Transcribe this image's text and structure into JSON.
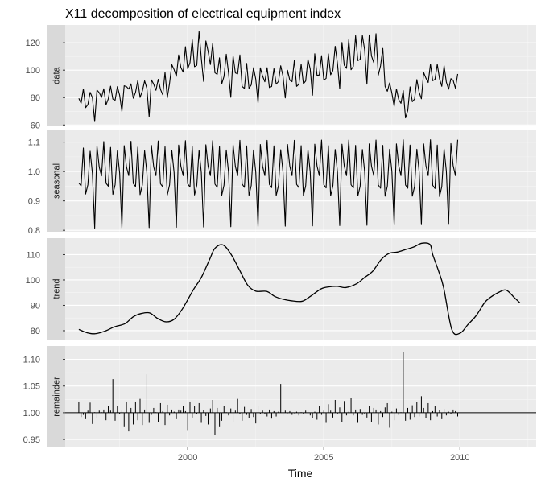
{
  "chart_data": {
    "type": "line",
    "title": "X11 decomposition of electrical equipment index",
    "xlabel": "Time",
    "x_start": 1996.0,
    "x_step_months": 1,
    "xlim": [
      1995.5,
      2012.8
    ],
    "xticks": [
      2000,
      2005,
      2010
    ],
    "xtick_labels": [
      "2000",
      "2005",
      "2010"
    ],
    "grid": true,
    "panels": [
      {
        "name": "data",
        "kind": "line",
        "ylim": [
          59,
          133
        ],
        "yticks": [
          60,
          80,
          100,
          120
        ],
        "ytick_labels": [
          "60",
          "80",
          "100",
          "120"
        ],
        "values": [
          79.4,
          75.8,
          86.3,
          72.6,
          74.9,
          83.8,
          79.9,
          62.5,
          85.4,
          83.6,
          80.1,
          86.4,
          74.7,
          79.1,
          88.3,
          78.9,
          78.1,
          88.0,
          81.7,
          69.8,
          88.6,
          88.0,
          86.2,
          90.0,
          79.5,
          83.8,
          92.4,
          80.1,
          84.7,
          92.2,
          86.8,
          65.9,
          92.9,
          89.8,
          85.3,
          93.3,
          86.0,
          82.0,
          98.4,
          79.9,
          90.4,
          104.0,
          100.4,
          95.5,
          111.1,
          101.8,
          98.6,
          117.1,
          101.0,
          105.4,
          122.1,
          102.5,
          103.5,
          128.2,
          108.5,
          91.8,
          121.3,
          113.6,
          104.1,
          119.4,
          98.1,
          96.9,
          109.0,
          89.9,
          95.4,
          111.6,
          97.9,
          80.2,
          110.4,
          98.0,
          97.3,
          111.1,
          88.1,
          86.7,
          104.9,
          86.8,
          89.2,
          101.8,
          93.4,
          76.1,
          101.7,
          95.7,
          91.5,
          101.8,
          87.3,
          88.1,
          101.1,
          89.8,
          91.7,
          103.2,
          95.6,
          79.7,
          99.9,
          92.7,
          91.6,
          107.1,
          88.2,
          89.7,
          104.4,
          90.0,
          92.1,
          107.9,
          100.8,
          81.7,
          112.0,
          96.2,
          96.5,
          110.6,
          92.7,
          94.0,
          111.9,
          96.6,
          99.7,
          117.4,
          105.0,
          86.4,
          120.2,
          103.6,
          101.3,
          122.2,
          100.3,
          102.7,
          125.2,
          107.0,
          107.8,
          125.3,
          114.7,
          89.8,
          125.7,
          110.4,
          105.5,
          126.6,
          96.3,
          103.2,
          115.9,
          88.1,
          84.6,
          90.7,
          83.2,
          73.6,
          86.3,
          78.6,
          75.8,
          85.1,
          65.1,
          70.6,
          87.8,
          77.0,
          78.9,
          93.1,
          83.9,
          79.1,
          98.3,
          94.2,
          91.0,
          104.4,
          92.3,
          93.3,
          104.3,
          93.7,
          88.2,
          103.3,
          91.3,
          86.1,
          93.8,
          92.6,
          86.8,
          97.2
        ]
      },
      {
        "name": "seasonal",
        "kind": "line",
        "ylim": [
          0.795,
          1.14
        ],
        "yticks": [
          0.8,
          0.9,
          1.0,
          1.1
        ],
        "ytick_labels": [
          "0.8",
          "0.9",
          "1.0",
          "1.1"
        ],
        "values": [
          0.961,
          0.951,
          1.08,
          0.923,
          0.955,
          1.069,
          0.993,
          0.807,
          1.087,
          1.015,
          0.985,
          1.102,
          0.96,
          0.95,
          1.082,
          0.922,
          0.955,
          1.07,
          0.994,
          0.808,
          1.088,
          1.016,
          0.986,
          1.103,
          0.959,
          0.949,
          1.083,
          0.921,
          0.954,
          1.071,
          0.995,
          0.809,
          1.089,
          1.016,
          0.986,
          1.104,
          0.958,
          0.948,
          1.084,
          0.92,
          0.954,
          1.072,
          0.996,
          0.81,
          1.09,
          1.017,
          0.986,
          1.105,
          0.958,
          0.947,
          1.085,
          0.92,
          0.953,
          1.072,
          0.996,
          0.811,
          1.091,
          1.017,
          0.986,
          1.105,
          0.957,
          0.946,
          1.086,
          0.919,
          0.953,
          1.073,
          0.997,
          0.812,
          1.091,
          1.018,
          0.986,
          1.106,
          0.957,
          0.946,
          1.087,
          0.919,
          0.952,
          1.073,
          0.997,
          0.813,
          1.092,
          1.018,
          0.986,
          1.106,
          0.956,
          0.945,
          1.087,
          0.918,
          0.952,
          1.074,
          0.998,
          0.814,
          1.092,
          1.018,
          0.986,
          1.106,
          0.956,
          0.945,
          1.088,
          0.918,
          0.951,
          1.074,
          0.998,
          0.815,
          1.093,
          1.019,
          0.986,
          1.107,
          0.955,
          0.944,
          1.088,
          0.917,
          0.951,
          1.075,
          0.999,
          0.816,
          1.093,
          1.019,
          0.986,
          1.107,
          0.955,
          0.944,
          1.089,
          0.917,
          0.95,
          1.075,
          0.999,
          0.817,
          1.094,
          1.019,
          0.986,
          1.107,
          0.954,
          0.943,
          1.089,
          0.916,
          0.95,
          1.076,
          1.0,
          0.818,
          1.094,
          1.02,
          0.986,
          1.108,
          0.954,
          0.943,
          1.09,
          0.916,
          0.949,
          1.076,
          1.0,
          0.819,
          1.094,
          1.02,
          0.986,
          1.108,
          0.953,
          0.942,
          1.09,
          0.915,
          0.949,
          1.077,
          1.001,
          0.82,
          1.095,
          1.02,
          0.986,
          1.108
        ]
      },
      {
        "name": "trend",
        "kind": "line",
        "ylim": [
          76.5,
          116.5
        ],
        "yticks": [
          80,
          90,
          100,
          110
        ],
        "ytick_labels": [
          "80",
          "90",
          "100",
          "110"
        ],
        "knots_x": [
          1996.0,
          1996.3,
          1996.6,
          1997.0,
          1997.3,
          1997.7,
          1998.0,
          1998.3,
          1998.6,
          1998.9,
          1999.2,
          1999.5,
          1999.8,
          2000.2,
          2000.5,
          2000.8,
          2001.0,
          2001.3,
          2001.6,
          2001.9,
          2002.2,
          2002.5,
          2002.9,
          2003.2,
          2003.5,
          2003.8,
          2004.2,
          2004.5,
          2004.9,
          2005.2,
          2005.5,
          2005.8,
          2006.2,
          2006.5,
          2006.8,
          2007.1,
          2007.4,
          2007.7,
          2008.0,
          2008.3,
          2008.6,
          2008.9,
          2009.0,
          2009.2,
          2009.4,
          2009.7,
          2010.0,
          2010.3,
          2010.6,
          2010.9,
          2011.1,
          2011.4,
          2011.7,
          2012.0,
          2012.2
        ],
        "knots_y": [
          80.5,
          79.2,
          78.8,
          80.0,
          81.5,
          82.8,
          85.5,
          86.8,
          87.0,
          84.8,
          83.5,
          84.5,
          88.5,
          96.0,
          101.0,
          108.0,
          112.5,
          113.8,
          110.0,
          104.0,
          98.0,
          95.6,
          95.5,
          93.5,
          92.4,
          91.8,
          91.6,
          93.5,
          96.5,
          97.3,
          97.5,
          97.0,
          98.5,
          101.0,
          103.5,
          108.0,
          110.5,
          111.0,
          112.0,
          113.0,
          114.5,
          114.0,
          110.0,
          104.0,
          97.0,
          80.5,
          79.0,
          82.5,
          86.0,
          91.0,
          93.0,
          95.0,
          96.0,
          93.0,
          91.0
        ]
      },
      {
        "name": "remainder",
        "kind": "bars",
        "baseline": 1.0,
        "ylim": [
          0.935,
          1.125
        ],
        "yticks": [
          0.95,
          1.0,
          1.05,
          1.1
        ],
        "ytick_labels": [
          "0.95",
          "1.00",
          "1.05",
          "1.10"
        ],
        "values": [
          1.021,
          0.992,
          0.996,
          0.988,
          1.004,
          1.019,
          0.979,
          1.001,
          0.991,
          1.004,
          1.001,
          1.006,
          0.986,
          1.012,
          1.004,
          1.063,
          0.985,
          1.012,
          0.998,
          1.004,
          0.973,
          1.021,
          0.965,
          1.009,
          0.978,
          1.021,
          0.986,
          1.026,
          0.977,
          1.006,
          1.072,
          0.981,
          0.996,
          1.009,
          1.001,
          0.983,
          1.018,
          1.003,
          0.977,
          1.015,
          0.995,
          1.006,
          1.002,
          0.988,
          1.006,
          1.004,
          1.012,
          1.003,
          0.966,
          1.021,
          0.991,
          1.013,
          0.997,
          1.018,
          0.981,
          1.005,
          0.994,
          0.978,
          1.008,
          1.024,
          0.958,
          1.009,
          0.973,
          0.985,
          1.012,
          1.001,
          0.995,
          1.008,
          0.982,
          1.004,
          1.026,
          0.998,
          0.985,
          1.011,
          0.996,
          0.99,
          1.007,
          0.992,
          0.98,
          1.012,
          0.997,
          1.004,
          0.997,
          0.993,
          1.006,
          0.989,
          1.003,
          0.993,
          1.002,
          1.054,
          0.994,
          1.004,
          0.999,
          1.003,
          0.996,
          0.999,
          1.002,
          0.995,
          1.001,
          0.998,
          1.004,
          1.006,
          0.995,
          0.99,
          1.002,
          0.987,
          1.012,
          0.996,
          1.004,
          0.981,
          1.016,
          1.004,
          0.991,
          1.024,
          0.997,
          1.01,
          0.982,
          1.022,
          0.995,
          1.002,
          1.027,
          0.995,
          1.006,
          0.981,
          1.007,
          0.996,
          0.998,
          0.991,
          1.013,
          0.983,
          1.009,
          1.006,
          0.978,
          1.003,
          0.992,
          1.01,
          1.018,
          0.972,
          1.002,
          0.986,
          1.008,
          0.996,
          1.001,
          1.113,
          0.985,
          1.009,
          0.987,
          1.014,
          0.992,
          1.02,
          0.993,
          1.031,
          1.009,
          0.99,
          1.018,
          0.986,
          1.003,
          1.012,
          0.993,
          1.005,
          0.988,
          1.007,
          0.995,
          1.002,
          0.998,
          1.006,
          1.003,
          0.993
        ]
      }
    ]
  }
}
